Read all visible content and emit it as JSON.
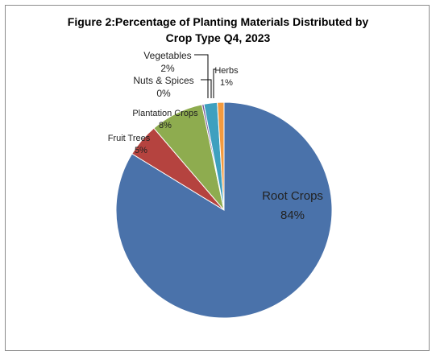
{
  "chart_data": {
    "type": "pie",
    "title_line1": "Figure 2:Percentage of Planting Materials Distributed by",
    "title_line2": "Crop Type Q4, 2023",
    "slices": [
      {
        "name": "Root Crops",
        "value": 84,
        "label": "84%",
        "color": "#4a72aa"
      },
      {
        "name": "Fruit Trees",
        "value": 5,
        "label": "5%",
        "color": "#b5433f"
      },
      {
        "name": "Plantation Crops",
        "value": 8,
        "label": "8%",
        "color": "#8eac4f"
      },
      {
        "name": "Nuts & Spices",
        "value": 0.3,
        "label": "0%",
        "color": "#7a5a9a"
      },
      {
        "name": "Vegetables",
        "value": 2,
        "label": "2%",
        "color": "#3ea0bf"
      },
      {
        "name": "Herbs",
        "value": 1,
        "label": "1%",
        "color": "#f39a3e"
      }
    ]
  }
}
